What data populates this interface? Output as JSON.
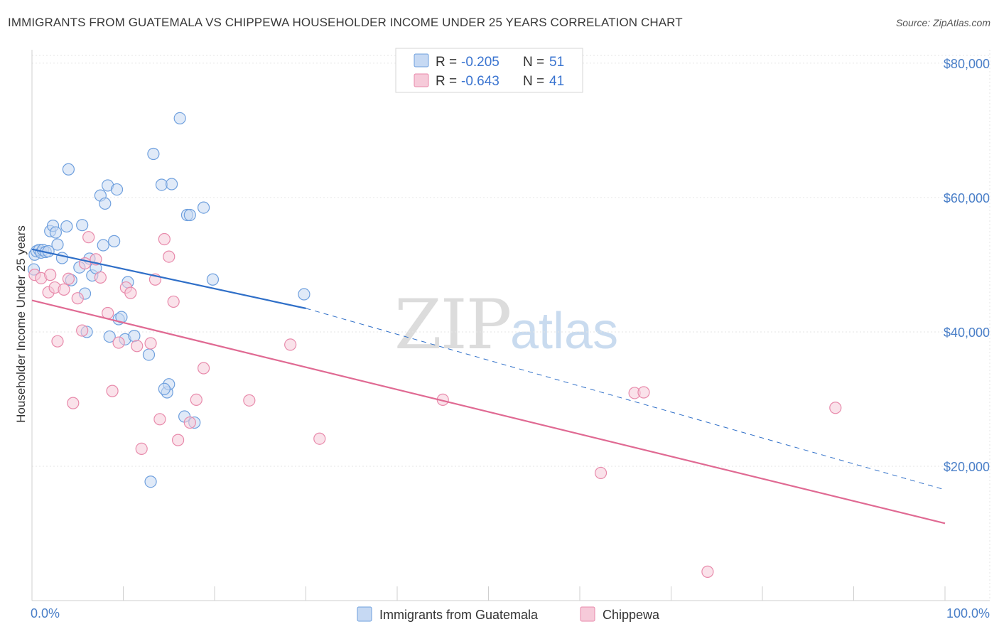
{
  "title": "IMMIGRANTS FROM GUATEMALA VS CHIPPEWA HOUSEHOLDER INCOME UNDER 25 YEARS CORRELATION CHART",
  "source": "Source: ZipAtlas.com",
  "watermark": {
    "zip": "ZIP",
    "atlas": "atlas"
  },
  "colors": {
    "blue": "#6fa0de",
    "blue_fill": "#c6d9f3",
    "blue_line": "#2f6fc8",
    "pink": "#e88aab",
    "pink_fill": "#f6cad9",
    "pink_line": "#e06a93",
    "tick_text": "#4a7fc8"
  },
  "legend": {
    "rows": [
      {
        "r_label": "R =",
        "r_value": "-0.205",
        "n_label": "N =",
        "n_value": "51"
      },
      {
        "r_label": "R =",
        "r_value": "-0.643",
        "n_label": "N =",
        "n_value": "41"
      }
    ]
  },
  "chart_data": {
    "type": "scatter",
    "xlabel": "",
    "ylabel": "Householder Income Under 25 years",
    "xlim": [
      0,
      100
    ],
    "ylim": [
      0,
      82000
    ],
    "x_tick_labels": [
      "0.0%",
      "100.0%"
    ],
    "y_ticks": [
      20000,
      40000,
      60000,
      80000
    ],
    "y_tick_labels": [
      "$20,000",
      "$40,000",
      "$60,000",
      "$80,000"
    ],
    "grid": true,
    "legend_position": "bottom",
    "series": [
      {
        "name": "Immigrants from Guatemala",
        "r": -0.205,
        "n": 51,
        "trend": {
          "x0": 0,
          "y0": 52300,
          "x1": 30,
          "y1": 43500,
          "dashed_to_x": 100,
          "dashed_to_y": 16500
        },
        "points": [
          [
            0.3,
            51500
          ],
          [
            0.5,
            52000
          ],
          [
            0.8,
            52200
          ],
          [
            1.0,
            51800
          ],
          [
            1.2,
            52200
          ],
          [
            1.5,
            51900
          ],
          [
            2.0,
            55000
          ],
          [
            2.3,
            55800
          ],
          [
            2.6,
            54800
          ],
          [
            2.8,
            53000
          ],
          [
            3.3,
            51000
          ],
          [
            3.8,
            55700
          ],
          [
            4.0,
            64200
          ],
          [
            4.3,
            47700
          ],
          [
            5.2,
            49600
          ],
          [
            5.5,
            55900
          ],
          [
            5.8,
            45700
          ],
          [
            6.0,
            40000
          ],
          [
            6.3,
            50900
          ],
          [
            6.6,
            48400
          ],
          [
            7.0,
            49500
          ],
          [
            7.5,
            60300
          ],
          [
            7.8,
            52900
          ],
          [
            8.0,
            59100
          ],
          [
            8.3,
            61800
          ],
          [
            8.5,
            39300
          ],
          [
            9.0,
            53500
          ],
          [
            9.3,
            61200
          ],
          [
            9.5,
            41900
          ],
          [
            9.8,
            42200
          ],
          [
            10.2,
            38900
          ],
          [
            10.5,
            47400
          ],
          [
            11.2,
            39400
          ],
          [
            12.8,
            36600
          ],
          [
            13.0,
            17700
          ],
          [
            13.3,
            66500
          ],
          [
            14.2,
            61900
          ],
          [
            14.8,
            31000
          ],
          [
            15.0,
            32200
          ],
          [
            15.3,
            62000
          ],
          [
            16.2,
            71800
          ],
          [
            16.7,
            27400
          ],
          [
            17.0,
            57400
          ],
          [
            17.3,
            57400
          ],
          [
            17.8,
            26500
          ],
          [
            18.8,
            58500
          ],
          [
            19.8,
            47800
          ],
          [
            29.8,
            45600
          ],
          [
            0.2,
            49300
          ],
          [
            1.8,
            52000
          ],
          [
            14.5,
            31500
          ]
        ]
      },
      {
        "name": "Chippewa",
        "r": -0.643,
        "n": 41,
        "trend": {
          "x0": 0,
          "y0": 44700,
          "x1": 100,
          "y1": 11500
        },
        "points": [
          [
            0.3,
            48500
          ],
          [
            1.0,
            48000
          ],
          [
            1.8,
            45900
          ],
          [
            2.5,
            46600
          ],
          [
            2.8,
            38600
          ],
          [
            3.5,
            46300
          ],
          [
            4.0,
            47900
          ],
          [
            4.5,
            29400
          ],
          [
            5.0,
            45000
          ],
          [
            5.5,
            40200
          ],
          [
            5.8,
            50200
          ],
          [
            6.2,
            54100
          ],
          [
            7.0,
            50800
          ],
          [
            7.5,
            48100
          ],
          [
            8.3,
            42800
          ],
          [
            8.8,
            31200
          ],
          [
            9.5,
            38400
          ],
          [
            10.3,
            46600
          ],
          [
            10.8,
            45800
          ],
          [
            11.5,
            37900
          ],
          [
            12.0,
            22600
          ],
          [
            13.0,
            38300
          ],
          [
            13.5,
            47800
          ],
          [
            14.0,
            27000
          ],
          [
            14.5,
            53800
          ],
          [
            15.0,
            51200
          ],
          [
            15.5,
            44500
          ],
          [
            16.0,
            23900
          ],
          [
            17.3,
            26500
          ],
          [
            18.0,
            29900
          ],
          [
            18.8,
            34600
          ],
          [
            23.8,
            29800
          ],
          [
            28.3,
            38100
          ],
          [
            31.5,
            24100
          ],
          [
            45.0,
            29900
          ],
          [
            62.3,
            19000
          ],
          [
            66.0,
            30900
          ],
          [
            67.0,
            31000
          ],
          [
            74.0,
            4300
          ],
          [
            88.0,
            28700
          ],
          [
            2.0,
            48500
          ]
        ]
      }
    ]
  }
}
